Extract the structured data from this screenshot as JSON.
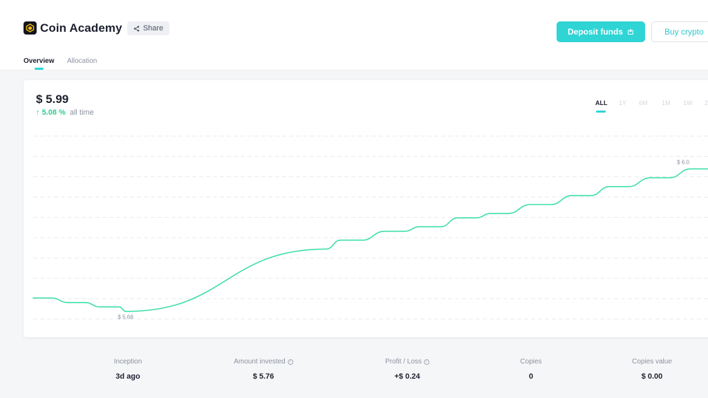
{
  "header": {
    "brand": "Coin Academy",
    "share_label": "Share",
    "deposit_label": "Deposit funds",
    "buy_label": "Buy crypto"
  },
  "tabs": [
    {
      "label": "Overview",
      "active": true
    },
    {
      "label": "Allocation",
      "active": false
    }
  ],
  "portfolio": {
    "value": "$ 5.99",
    "change": "5.08 %",
    "change_note": "all time"
  },
  "time_ranges": [
    {
      "label": "ALL",
      "active": true
    },
    {
      "label": "1Y",
      "active": false
    },
    {
      "label": "6M",
      "active": false
    },
    {
      "label": "1M",
      "active": false
    },
    {
      "label": "1W",
      "active": false
    },
    {
      "label": "2",
      "active": false
    }
  ],
  "chart_data": {
    "type": "line",
    "min_label": "$ 5.68",
    "max_label": "$ 6.0",
    "ylim": [
      5.65,
      6.1
    ],
    "grid": true,
    "series": [
      {
        "color": "#3ddfa8",
        "points": [
          [
            0,
            5.71
          ],
          [
            1.3,
            5.71
          ],
          [
            2.4,
            5.7
          ],
          [
            3.6,
            5.7
          ],
          [
            4.7,
            5.69
          ],
          [
            6.0,
            5.69
          ],
          [
            6.5,
            5.68
          ],
          [
            20.5,
            5.82
          ],
          [
            21.5,
            5.84
          ],
          [
            23.0,
            5.84
          ],
          [
            24.6,
            5.86
          ],
          [
            26.0,
            5.86
          ],
          [
            27.0,
            5.87
          ],
          [
            28.5,
            5.87
          ],
          [
            29.7,
            5.89
          ],
          [
            31.0,
            5.89
          ],
          [
            32.0,
            5.9
          ],
          [
            33.2,
            5.9
          ],
          [
            34.8,
            5.92
          ],
          [
            36.2,
            5.92
          ],
          [
            37.7,
            5.94
          ],
          [
            39.0,
            5.94
          ],
          [
            40.3,
            5.96
          ],
          [
            41.6,
            5.96
          ],
          [
            43.2,
            5.98
          ],
          [
            44.5,
            5.98
          ],
          [
            46.0,
            6.0
          ],
          [
            47.2,
            6.0
          ]
        ]
      }
    ],
    "line_color": "#3ddfa8",
    "grid_color": "#e6e9ee"
  },
  "stats": [
    {
      "label": "Inception",
      "value": "3d ago",
      "info": false
    },
    {
      "label": "Amount invested",
      "value": "$ 5.76",
      "info": true
    },
    {
      "label": "Profit / Loss",
      "value": "+$ 0.24",
      "info": true
    },
    {
      "label": "Copies",
      "value": "0",
      "info": false
    },
    {
      "label": "Copies value",
      "value": "$ 0.00",
      "info": false
    }
  ]
}
